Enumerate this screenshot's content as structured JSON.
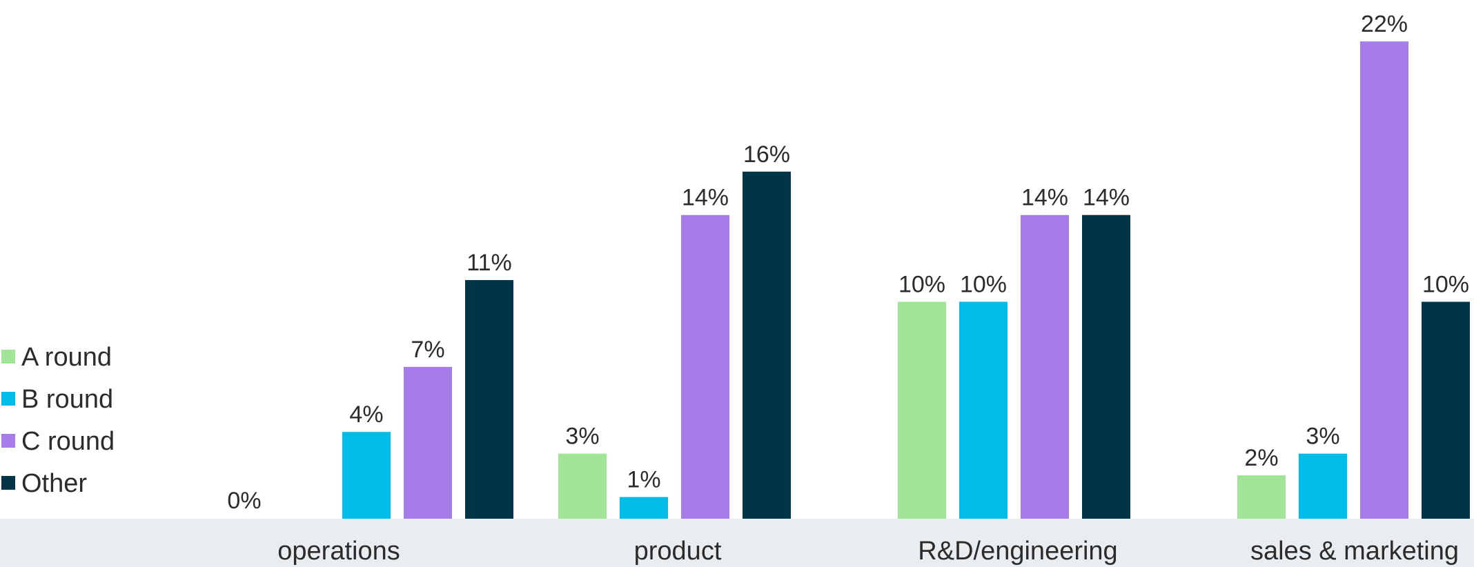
{
  "chart_data": {
    "type": "bar",
    "categories": [
      "operations",
      "product",
      "R&D/engineering",
      "sales & marketing"
    ],
    "series": [
      {
        "name": "A round",
        "color": "#A0E595",
        "values": [
          0,
          3,
          10,
          2
        ],
        "labels": [
          "0%",
          "3%",
          "10%",
          "2%"
        ]
      },
      {
        "name": "B round",
        "color": "#00BCE6",
        "values": [
          4,
          1,
          10,
          3
        ],
        "labels": [
          "4%",
          "1%",
          "10%",
          "3%"
        ]
      },
      {
        "name": "C round",
        "color": "#A57CE8",
        "values": [
          7,
          14,
          14,
          22
        ],
        "labels": [
          "7%",
          "14%",
          "14%",
          "22%"
        ]
      },
      {
        "name": "Other",
        "color": "#023447",
        "values": [
          11,
          16,
          14,
          10
        ],
        "labels": [
          "11%",
          "16%",
          "14%",
          "10%"
        ]
      }
    ],
    "legend_position": "left",
    "grid": false,
    "ylim": [
      0,
      23
    ],
    "axis_band_color": "#E9EDF0"
  }
}
